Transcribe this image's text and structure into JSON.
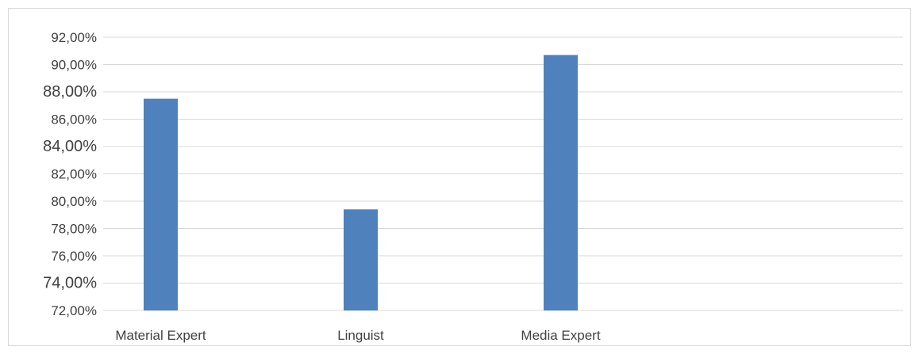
{
  "chart_data": {
    "type": "bar",
    "categories": [
      "Material Expert",
      "Linguist",
      "Media Expert"
    ],
    "values": [
      87.5,
      79.4,
      90.7
    ],
    "ylim": [
      72,
      92
    ],
    "yticks": [
      "72,00%",
      "74,00%",
      "76,00%",
      "78,00%",
      "80,00%",
      "82,00%",
      "84,00%",
      "86,00%",
      "88,00%",
      "90,00%",
      "92,00%"
    ],
    "title": "",
    "xlabel": "",
    "ylabel": "",
    "grid": true,
    "legend": "none",
    "bar_color": "#4f81bd",
    "grid_color": "#d9d9d9"
  }
}
